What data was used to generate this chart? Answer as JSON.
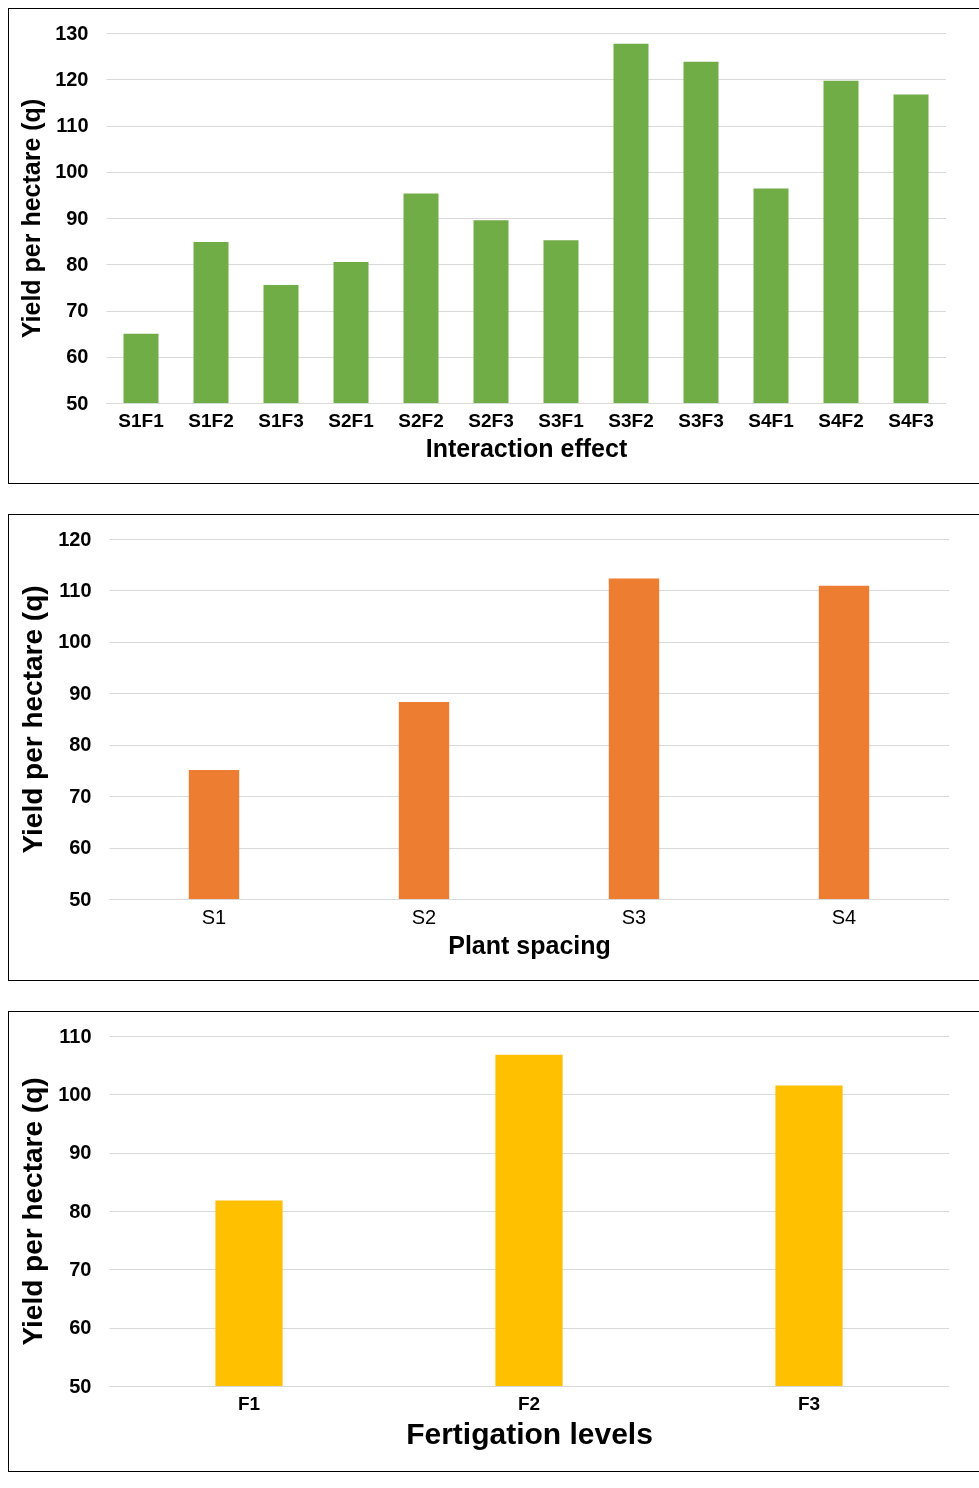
{
  "chart_data": [
    {
      "type": "bar",
      "xlabel": "Interaction effect",
      "ylabel": "Yield per hectare (q)",
      "categories": [
        "S1F1",
        "S1F2",
        "S1F3",
        "S2F1",
        "S2F2",
        "S2F3",
        "S3F1",
        "S3F2",
        "S3F3",
        "S4F1",
        "S4F2",
        "S4F3"
      ],
      "values": [
        65.0,
        84.8,
        75.5,
        80.5,
        95.3,
        89.5,
        85.2,
        127.7,
        123.8,
        96.4,
        119.7,
        116.7
      ],
      "color": "#70ad47",
      "ylim": [
        50,
        130
      ],
      "yticks": [
        50,
        60,
        70,
        80,
        90,
        100,
        110,
        120,
        130
      ],
      "grid": "y"
    },
    {
      "type": "bar",
      "xlabel": "Plant spacing",
      "ylabel": "Yield per hectare (q)",
      "categories": [
        "S1",
        "S2",
        "S3",
        "S4"
      ],
      "values": [
        75.1,
        88.3,
        112.3,
        110.9
      ],
      "color": "#ed7d31",
      "ylim": [
        50,
        120
      ],
      "yticks": [
        50,
        60,
        70,
        80,
        90,
        100,
        110,
        120
      ],
      "grid": "y"
    },
    {
      "type": "bar",
      "xlabel": "Fertigation levels",
      "ylabel": "Yield per hectare (q)",
      "categories": [
        "F1",
        "F2",
        "F3"
      ],
      "values": [
        81.8,
        106.8,
        101.5
      ],
      "color": "#ffc000",
      "ylim": [
        50,
        110
      ],
      "yticks": [
        50,
        60,
        70,
        80,
        90,
        100,
        110
      ],
      "grid": "y"
    }
  ]
}
